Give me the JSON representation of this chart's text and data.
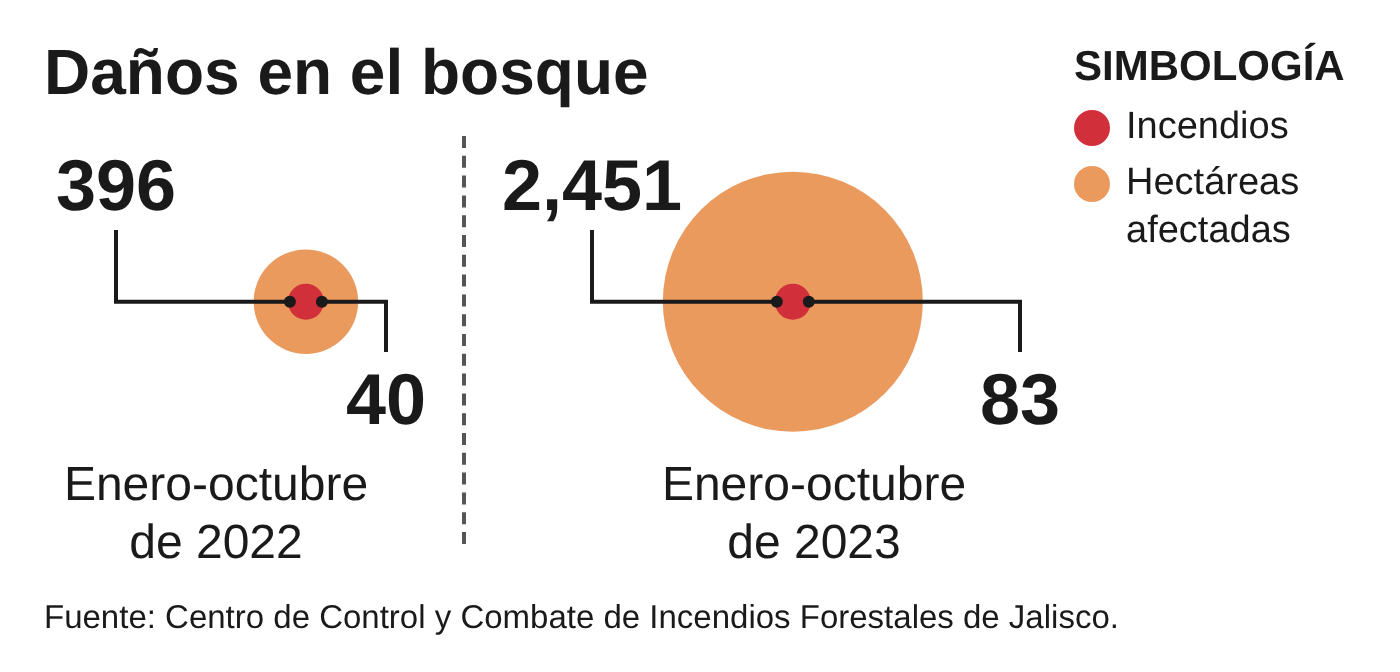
{
  "chart_data": {
    "type": "other",
    "title": "Daños en el bosque",
    "legend_title": "SIMBOLOGÍA",
    "legend": "top right",
    "categories": [
      "Enero-octubre de 2022",
      "Enero-octubre de 2023"
    ],
    "series": [
      {
        "name": "Hectáreas afectadas",
        "color": "#eb9a5e",
        "values": [
          396,
          2451
        ],
        "value_labels": [
          "396",
          "2,451"
        ]
      },
      {
        "name": "Incendios",
        "color": "#d12f3a",
        "values": [
          40,
          83
        ],
        "value_labels": [
          "40",
          "83"
        ]
      }
    ],
    "annotations": [
      "Fuente: Centro de Control y Combate de Incendios Forestales de Jalisco."
    ]
  }
}
